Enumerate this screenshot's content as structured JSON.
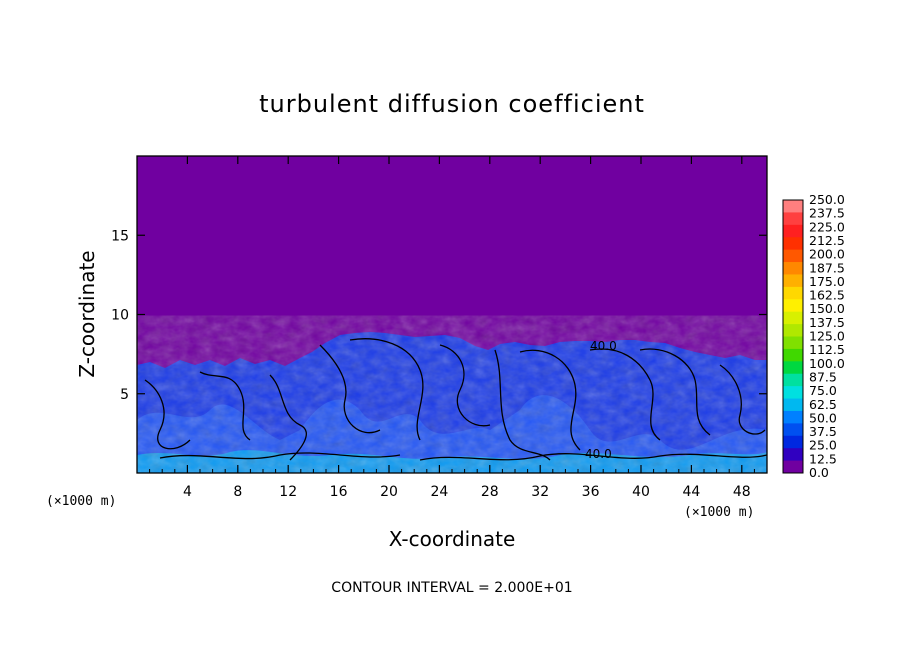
{
  "chart_data": {
    "type": "heatmap",
    "title": "turbulent diffusion coefficient",
    "xlabel": "X-coordinate",
    "ylabel": "Z-coordinate",
    "x_unit": "(×1000 m)",
    "y_unit": "(×1000 m)",
    "xlim": [
      0,
      50
    ],
    "ylim": [
      0,
      20
    ],
    "x_ticks": [
      4,
      8,
      12,
      16,
      20,
      24,
      28,
      32,
      36,
      40,
      44,
      48
    ],
    "y_ticks": [
      5,
      10,
      15
    ],
    "colorbar": {
      "levels": [
        "250.0",
        "237.5",
        "225.0",
        "212.5",
        "200.0",
        "187.5",
        "175.0",
        "162.5",
        "150.0",
        "137.5",
        "125.0",
        "112.5",
        "100.0",
        "87.5",
        "75.0",
        "62.5",
        "50.0",
        "37.5",
        "25.0",
        "12.5",
        "0.0"
      ],
      "colors": [
        "#ff7f7f",
        "#ff4040",
        "#ff2020",
        "#ff3000",
        "#ff5800",
        "#ff8800",
        "#ffb000",
        "#ffd800",
        "#fff000",
        "#d8f000",
        "#b0e800",
        "#80e000",
        "#40d800",
        "#00d840",
        "#00e0a0",
        "#00e0e0",
        "#00b8f0",
        "#0080ff",
        "#0050f0",
        "#0028e0",
        "#3000c0",
        "#7000a0"
      ],
      "top_label": "250.0"
    },
    "annotations": [
      "40.0",
      "40.0"
    ],
    "contour_interval_text": "CONTOUR INTERVAL = 2.000E+01",
    "background_value_color": "#7000a0"
  }
}
